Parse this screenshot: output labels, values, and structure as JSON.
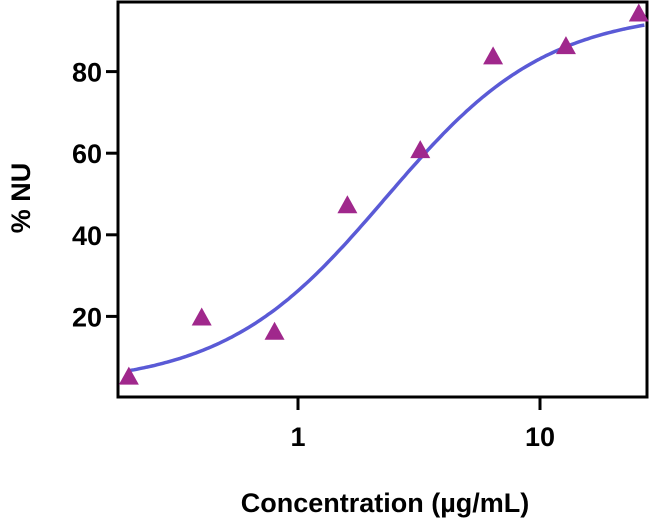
{
  "chart_data": {
    "type": "scatter",
    "title": "",
    "xlabel": "Concentration (µg/mL)",
    "ylabel": "% NU",
    "xscale": "log",
    "xlim": [
      0.18,
      27
    ],
    "ylim": [
      0,
      97.5
    ],
    "xticks": [
      {
        "value": 1,
        "label": "1"
      },
      {
        "value": 10,
        "label": "10"
      }
    ],
    "yticks": [
      {
        "value": 20,
        "label": "20"
      },
      {
        "value": 40,
        "label": "40"
      },
      {
        "value": 60,
        "label": "60"
      },
      {
        "value": 80,
        "label": "80"
      }
    ],
    "grid": false,
    "legend": "none",
    "points": {
      "marker": "triangle",
      "color": "#a0288c",
      "x": [
        0.2,
        0.4,
        0.8,
        1.6,
        3.2,
        6.4,
        12.8,
        25.6
      ],
      "y": [
        5,
        19.5,
        16,
        47,
        60.5,
        83.5,
        86,
        94
      ]
    },
    "fit_curve": {
      "model": "4PL",
      "color": "#5a5ad6",
      "bottom": 3,
      "top": 95,
      "ec50": 2.3,
      "hill": 1.3
    }
  }
}
